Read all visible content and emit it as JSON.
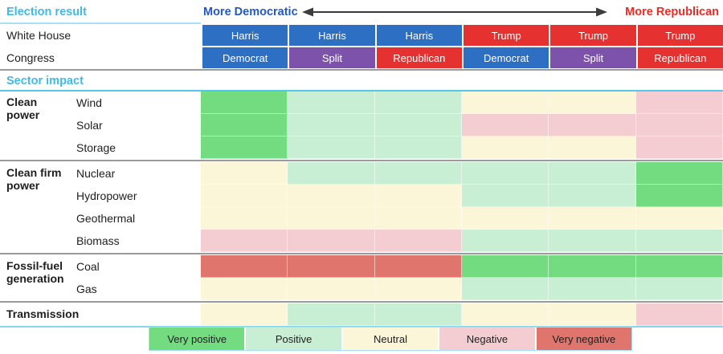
{
  "header": {
    "election_result": "Election result",
    "more_democratic": "More Democratic",
    "more_republican": "More Republican",
    "rows": [
      {
        "label": "White House",
        "cells": [
          {
            "text": "Harris",
            "bg": "#2D6FC3"
          },
          {
            "text": "Harris",
            "bg": "#2D6FC3"
          },
          {
            "text": "Harris",
            "bg": "#2D6FC3"
          },
          {
            "text": "Trump",
            "bg": "#E53130"
          },
          {
            "text": "Trump",
            "bg": "#E53130"
          },
          {
            "text": "Trump",
            "bg": "#E53130"
          }
        ]
      },
      {
        "label": "Congress",
        "cells": [
          {
            "text": "Democrat",
            "bg": "#2D6FC3"
          },
          {
            "text": "Split",
            "bg": "#7C52AA"
          },
          {
            "text": "Republican",
            "bg": "#E53130"
          },
          {
            "text": "Democrat",
            "bg": "#2D6FC3"
          },
          {
            "text": "Split",
            "bg": "#7C52AA"
          },
          {
            "text": "Republican",
            "bg": "#E53130"
          }
        ]
      }
    ]
  },
  "sector_impact": "Sector impact",
  "colors": {
    "cyan_heading": "#41B9E6",
    "dem_blue": "#2158C8",
    "rep_red": "#EC2B25",
    "arrow": "#3C3C3C",
    "divider_gray": "#9B9B9B",
    "divider_cyan": "#55C5EC",
    "divider_cyan_light": "#A7DFF4",
    "divider_cyan_bottom": "#87D4EF"
  },
  "chart_data": {
    "type": "heatmap",
    "columns": [
      {
        "white_house": "Harris",
        "congress": "Democrat"
      },
      {
        "white_house": "Harris",
        "congress": "Split"
      },
      {
        "white_house": "Harris",
        "congress": "Republican"
      },
      {
        "white_house": "Trump",
        "congress": "Democrat"
      },
      {
        "white_house": "Trump",
        "congress": "Split"
      },
      {
        "white_house": "Trump",
        "congress": "Republican"
      }
    ],
    "rating_scale": [
      "very_negative",
      "negative",
      "neutral",
      "positive",
      "very_positive"
    ],
    "rating_colors": {
      "very_positive": "#73DC81",
      "positive": "#C8EFD4",
      "neutral": "#FBF6D7",
      "negative": "#F3CDD2",
      "very_negative": "#E0756D"
    },
    "groups": [
      {
        "name": "Clean power",
        "rows": [
          {
            "label": "Wind",
            "values": [
              "very_positive",
              "positive",
              "positive",
              "neutral",
              "neutral",
              "negative"
            ]
          },
          {
            "label": "Solar",
            "values": [
              "very_positive",
              "positive",
              "positive",
              "negative",
              "negative",
              "negative"
            ]
          },
          {
            "label": "Storage",
            "values": [
              "very_positive",
              "positive",
              "positive",
              "neutral",
              "neutral",
              "negative"
            ]
          }
        ]
      },
      {
        "name": "Clean firm power",
        "rows": [
          {
            "label": "Nuclear",
            "values": [
              "neutral",
              "positive",
              "positive",
              "positive",
              "positive",
              "very_positive"
            ]
          },
          {
            "label": "Hydropower",
            "values": [
              "neutral",
              "neutral",
              "neutral",
              "positive",
              "positive",
              "very_positive"
            ]
          },
          {
            "label": "Geothermal",
            "values": [
              "neutral",
              "neutral",
              "neutral",
              "neutral",
              "neutral",
              "neutral"
            ]
          },
          {
            "label": "Biomass",
            "values": [
              "negative",
              "negative",
              "negative",
              "positive",
              "positive",
              "positive"
            ]
          }
        ]
      },
      {
        "name": "Fossil-fuel generation",
        "rows": [
          {
            "label": "Coal",
            "values": [
              "very_negative",
              "very_negative",
              "very_negative",
              "very_positive",
              "very_positive",
              "very_positive"
            ]
          },
          {
            "label": "Gas",
            "values": [
              "neutral",
              "neutral",
              "neutral",
              "positive",
              "positive",
              "positive"
            ]
          }
        ]
      },
      {
        "name": "Transmission",
        "rows": [
          {
            "label": "",
            "values": [
              "neutral",
              "positive",
              "positive",
              "neutral",
              "neutral",
              "negative"
            ]
          }
        ]
      }
    ]
  },
  "legend": {
    "items": [
      {
        "label": "Very positive",
        "rating": "very_positive"
      },
      {
        "label": "Positive",
        "rating": "positive"
      },
      {
        "label": "Neutral",
        "rating": "neutral"
      },
      {
        "label": "Negative",
        "rating": "negative"
      },
      {
        "label": "Very negative",
        "rating": "very_negative"
      }
    ]
  }
}
